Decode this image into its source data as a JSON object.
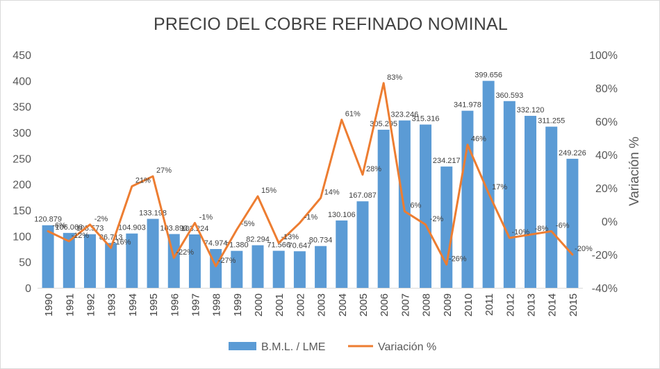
{
  "chart_data": {
    "type": "bar",
    "title": "PRECIO DEL COBRE REFINADO NOMINAL",
    "xlabel": "",
    "ylabel": "",
    "y2label": "Variación %",
    "ylim": [
      0,
      450
    ],
    "yticks": [
      0,
      50,
      100,
      150,
      200,
      250,
      300,
      350,
      400,
      450
    ],
    "y2lim": [
      -40,
      100
    ],
    "y2ticks": [
      "-40%",
      "-20%",
      "0%",
      "20%",
      "40%",
      "60%",
      "80%",
      "100%"
    ],
    "grid": false,
    "legend_position": "bottom",
    "categories": [
      "1990",
      "1991",
      "1992",
      "1993",
      "1994",
      "1995",
      "1996",
      "1997",
      "1998",
      "1999",
      "2000",
      "2001",
      "2002",
      "2003",
      "2004",
      "2005",
      "2006",
      "2007",
      "2008",
      "2009",
      "2010",
      "2011",
      "2012",
      "2013",
      "2014",
      "2015"
    ],
    "series": [
      {
        "name": "B.M.L. / LME",
        "type": "bar",
        "axis": "left",
        "color": "#5b9bd5",
        "values": [
          120.879,
          106.066,
          103.573,
          86.713,
          104.903,
          133.198,
          103.89,
          103.224,
          74.974,
          71.38,
          82.294,
          71.566,
          70.647,
          80.734,
          130.106,
          167.087,
          305.295,
          323.246,
          315.316,
          234.217,
          341.978,
          399.656,
          360.593,
          332.12,
          311.255,
          249.226
        ],
        "labels": [
          "120.879",
          "106.066",
          "103.573",
          "86.713",
          "104.903",
          "133.198",
          "103.890",
          "103.224",
          "74.974",
          "71.380",
          "82.294",
          "71.566",
          "70.647",
          "80.734",
          "130.106",
          "167.087",
          "305.295",
          "323.246",
          "315.316",
          "234.217",
          "341.978",
          "399.656",
          "360.593",
          "332.120",
          "311.255",
          "249.226"
        ]
      },
      {
        "name": "Variación %",
        "type": "line",
        "axis": "right",
        "color": "#ed7d31",
        "values": [
          -6,
          -12,
          -2,
          -16,
          21,
          27,
          -22,
          -1,
          -27,
          -5,
          15,
          -13,
          -1,
          14,
          61,
          28,
          83,
          6,
          -2,
          -26,
          46,
          17,
          -10,
          -8,
          -6,
          -20
        ],
        "labels": [
          "-6%",
          "-12%",
          "-2%",
          "-16%",
          "21%",
          "27%",
          "-22%",
          "-1%",
          "-27%",
          "-5%",
          "15%",
          "-13%",
          "-1%",
          "14%",
          "61%",
          "28%",
          "83%",
          "6%",
          "-2%",
          "-26%",
          "46%",
          "17%",
          "-10%",
          "-8%",
          "-6%",
          "-20%"
        ]
      }
    ]
  }
}
